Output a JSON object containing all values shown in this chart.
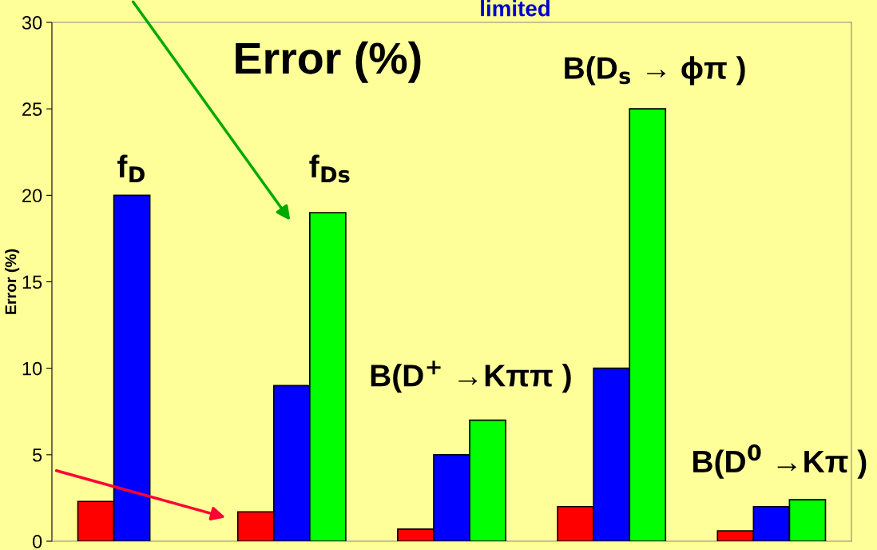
{
  "chart_data": {
    "type": "bar",
    "categories": [
      null,
      null,
      null,
      null,
      null
    ],
    "series": [
      {
        "color": "#ff0000",
        "values": [
          2.3,
          1.7,
          0.7,
          2,
          0.6
        ]
      },
      {
        "color": "#0000ff",
        "values": [
          20,
          9,
          5,
          10,
          2
        ]
      },
      {
        "color": "#00ff00",
        "values": [
          null,
          19,
          7,
          25,
          2.4
        ]
      }
    ],
    "ylabel": "Error (%)",
    "ylim": [
      0,
      30
    ],
    "yticks": [
      0,
      5,
      10,
      15,
      20,
      25,
      30
    ],
    "grid": false,
    "legend": false,
    "annotations": [
      "Error (%)",
      "f$_{D}$",
      "f$_{Ds}$",
      "B(D$_{s}$ → ϕπ )",
      "B(D$^{+}$ →Kππ )",
      "B(D$^{0}$ →Kπ )",
      "limited"
    ]
  }
}
